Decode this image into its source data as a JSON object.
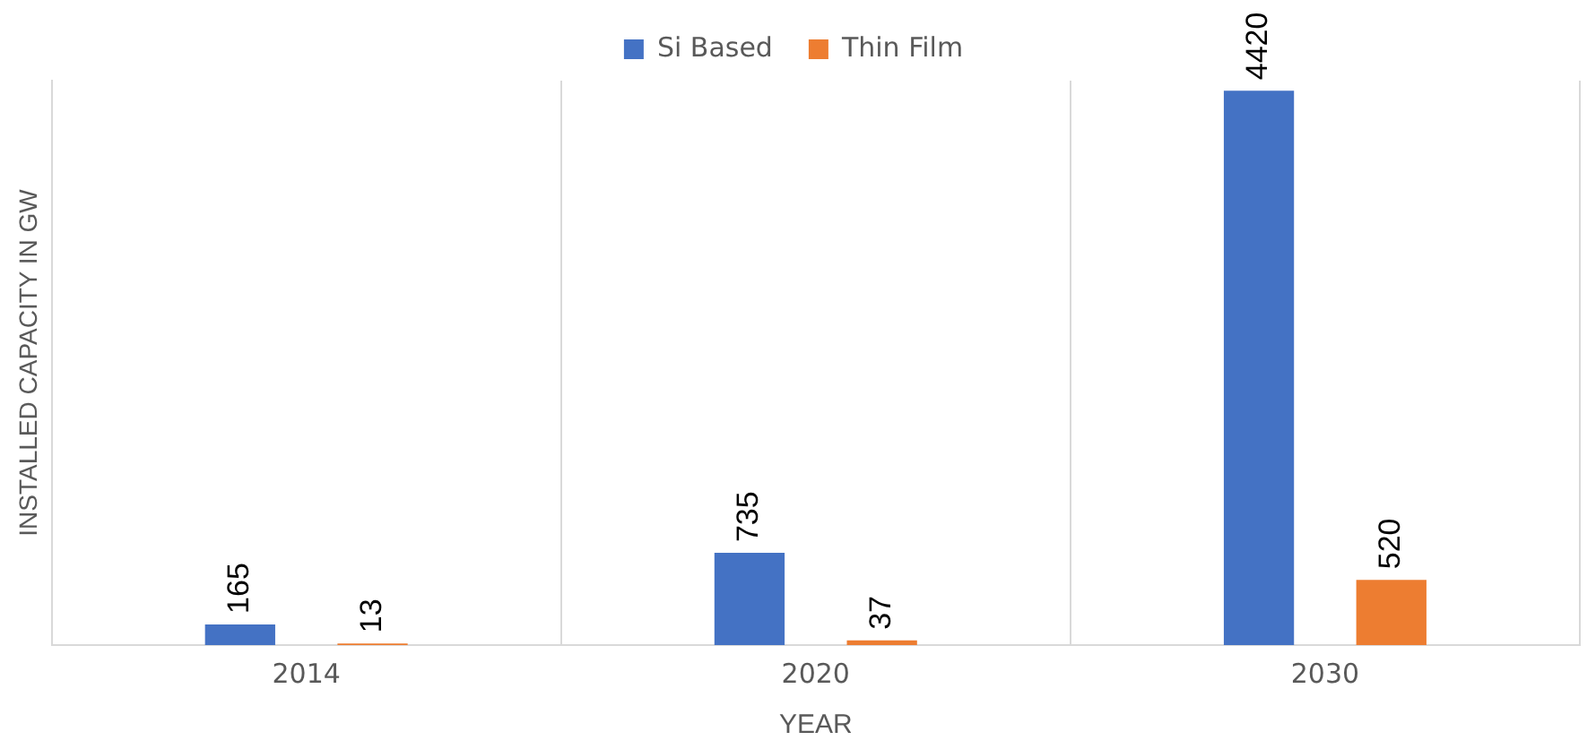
{
  "chart_data": {
    "type": "bar",
    "xlabel": "YEAR",
    "ylabel": "INSTALLED CAPACITY IN GW",
    "categories": [
      "2014",
      "2020",
      "2030"
    ],
    "series": [
      {
        "name": "Si Based",
        "color": "#4472c4",
        "values": [
          165,
          735,
          4420
        ]
      },
      {
        "name": "Thin Film",
        "color": "#ed7d31",
        "values": [
          13,
          37,
          520
        ]
      }
    ],
    "data_labels": true,
    "grid": "x",
    "legend": "top"
  }
}
